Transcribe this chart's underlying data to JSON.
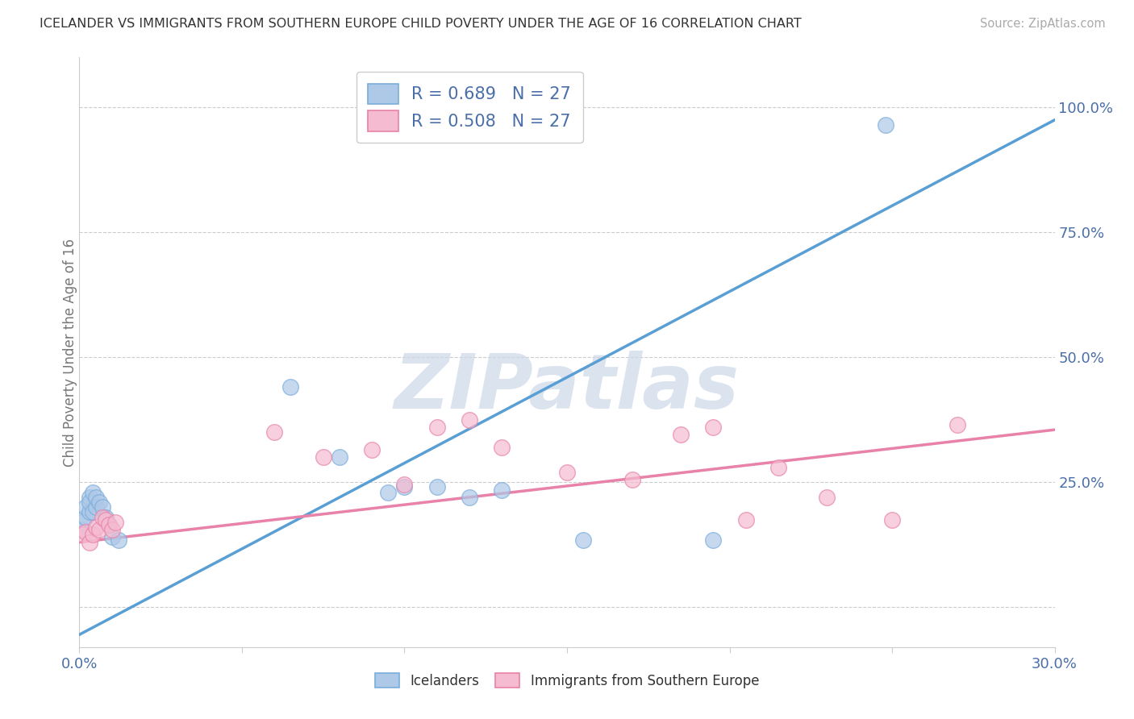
{
  "title": "ICELANDER VS IMMIGRANTS FROM SOUTHERN EUROPE CHILD POVERTY UNDER THE AGE OF 16 CORRELATION CHART",
  "source": "Source: ZipAtlas.com",
  "ylabel": "Child Poverty Under the Age of 16",
  "xlim": [
    0.0,
    0.3
  ],
  "ylim": [
    -0.08,
    1.1
  ],
  "R_blue": "0.689",
  "N_blue": "27",
  "R_pink": "0.508",
  "N_pink": "27",
  "blue_scatter_color": "#aec8e8",
  "blue_scatter_edge": "#7aadda",
  "pink_scatter_color": "#f5bbd0",
  "pink_scatter_edge": "#e882a8",
  "blue_line_color": "#5a9fd4",
  "pink_line_color": "#e882a8",
  "legend_label_blue": "Icelanders",
  "legend_label_pink": "Immigrants from Southern Europe",
  "legend_text_color": "#4a6fa8",
  "watermark_color": "#cdd8e8",
  "bg_color": "#ffffff",
  "grid_color": "#cccccc",
  "blue_scatter_x": [
    0.001,
    0.001,
    0.002,
    0.002,
    0.003,
    0.003,
    0.003,
    0.004,
    0.004,
    0.005,
    0.005,
    0.006,
    0.007,
    0.008,
    0.009,
    0.01,
    0.012,
    0.065,
    0.08,
    0.095,
    0.1,
    0.11,
    0.12,
    0.13,
    0.155,
    0.195,
    0.248
  ],
  "blue_scatter_y": [
    0.155,
    0.17,
    0.18,
    0.2,
    0.19,
    0.22,
    0.21,
    0.19,
    0.23,
    0.2,
    0.22,
    0.21,
    0.2,
    0.18,
    0.165,
    0.14,
    0.135,
    0.44,
    0.3,
    0.23,
    0.24,
    0.24,
    0.22,
    0.235,
    0.135,
    0.135,
    0.965
  ],
  "pink_scatter_x": [
    0.001,
    0.002,
    0.003,
    0.004,
    0.005,
    0.006,
    0.007,
    0.008,
    0.009,
    0.01,
    0.011,
    0.06,
    0.075,
    0.09,
    0.1,
    0.11,
    0.12,
    0.13,
    0.15,
    0.17,
    0.185,
    0.195,
    0.205,
    0.215,
    0.23,
    0.25,
    0.27
  ],
  "pink_scatter_y": [
    0.145,
    0.15,
    0.13,
    0.145,
    0.16,
    0.155,
    0.18,
    0.175,
    0.165,
    0.155,
    0.17,
    0.35,
    0.3,
    0.315,
    0.245,
    0.36,
    0.375,
    0.32,
    0.27,
    0.255,
    0.345,
    0.36,
    0.175,
    0.28,
    0.22,
    0.175,
    0.365
  ],
  "blue_trend_x0": 0.0,
  "blue_trend_y0": -0.055,
  "blue_trend_x1": 0.3,
  "blue_trend_y1": 0.975,
  "pink_trend_x0": 0.0,
  "pink_trend_y0": 0.13,
  "pink_trend_x1": 0.3,
  "pink_trend_y1": 0.355,
  "yticks_right": [
    0.0,
    0.25,
    0.5,
    0.75,
    1.0
  ],
  "ytick_right_labels": [
    "",
    "25.0%",
    "50.0%",
    "75.0%",
    "100.0%"
  ],
  "xticks": [
    0.0,
    0.05,
    0.1,
    0.15,
    0.2,
    0.25,
    0.3
  ],
  "xtick_labels": [
    "0.0%",
    "",
    "",
    "",
    "",
    "",
    "30.0%"
  ]
}
